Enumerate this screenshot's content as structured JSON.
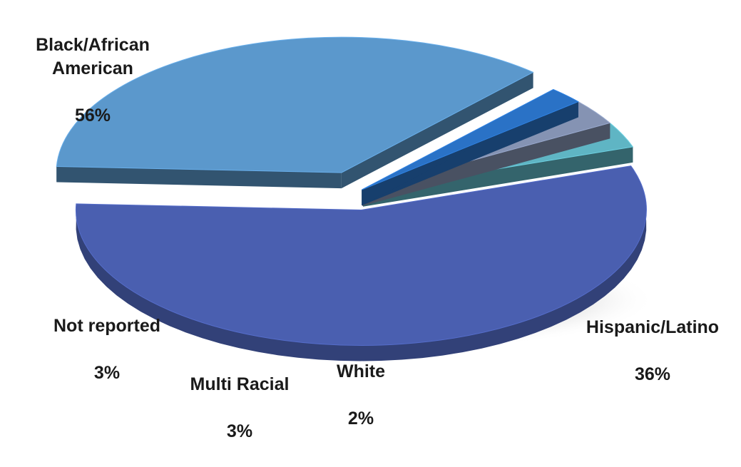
{
  "chart_data": {
    "type": "pie",
    "style": "3d-exploded",
    "slices": [
      {
        "label": "Black/African American",
        "value": 56,
        "value_label": "56%",
        "color": "#4a5fb0"
      },
      {
        "label": "Hispanic/Latino",
        "value": 36,
        "value_label": "36%",
        "color": "#5b98cc"
      },
      {
        "label": "White",
        "value": 2,
        "value_label": "2%",
        "color": "#2a72c6"
      },
      {
        "label": "Multi Racial",
        "value": 3,
        "value_label": "3%",
        "color": "#8593b3"
      },
      {
        "label": "Not reported",
        "value": 3,
        "value_label": "3%",
        "color": "#5fb5c4"
      }
    ]
  }
}
